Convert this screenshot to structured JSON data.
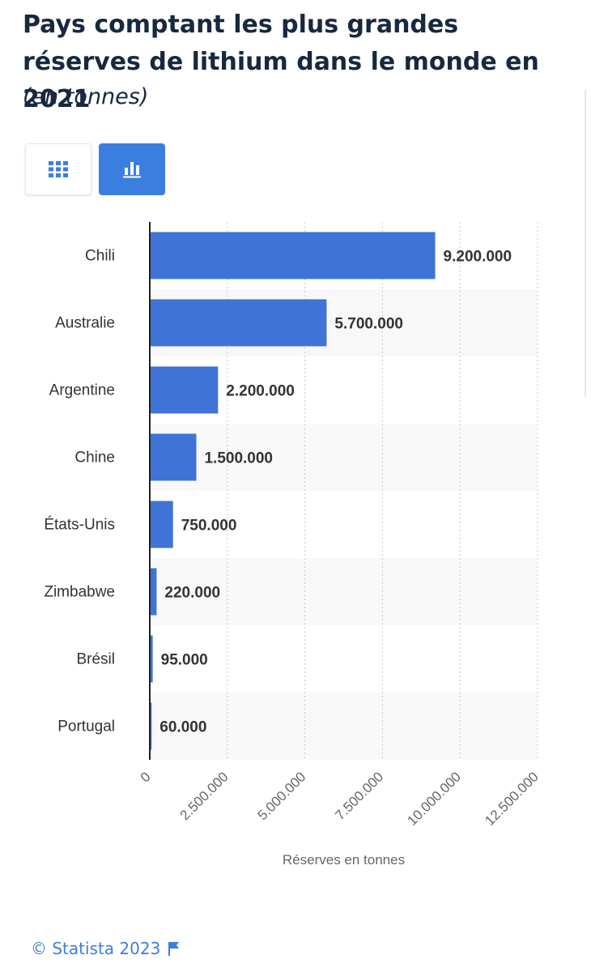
{
  "header": {
    "title": "Pays comptant les plus grandes réserves de lithium dans le monde en 2021",
    "subtitle": "(en tonnes)"
  },
  "toolbar": {
    "table_icon": "table-grid-icon",
    "chart_icon": "bar-chart-icon"
  },
  "colors": {
    "bar": "#3f74d6",
    "accent": "#3a7fe0",
    "title": "#17283f"
  },
  "chart_data": {
    "type": "bar",
    "orientation": "horizontal",
    "categories": [
      "Chili",
      "Australie",
      "Argentine",
      "Chine",
      "États-Unis",
      "Zimbabwe",
      "Brésil",
      "Portugal"
    ],
    "values": [
      9200000,
      5700000,
      2200000,
      1500000,
      750000,
      220000,
      95000,
      60000
    ],
    "value_labels": [
      "9.200.000",
      "5.700.000",
      "2.200.000",
      "1.500.000",
      "750.000",
      "220.000",
      "95.000",
      "60.000"
    ],
    "xlabel": "Réserves en tonnes",
    "xlim": [
      0,
      12500000
    ],
    "xticks": [
      0,
      2500000,
      5000000,
      7500000,
      10000000,
      12500000
    ],
    "xtick_labels": [
      "0",
      "2.500.000",
      "5.000.000",
      "7.500.000",
      "10.000.000",
      "12.500.000"
    ],
    "grid": "vertical dotted"
  },
  "footer": {
    "copyright": "© Statista 2023",
    "flag_icon": "flag-icon"
  }
}
